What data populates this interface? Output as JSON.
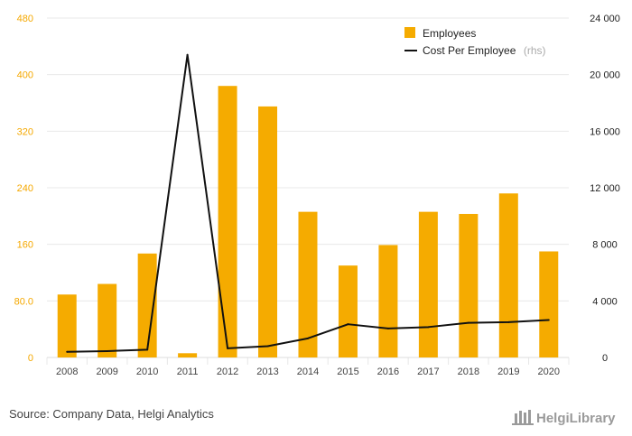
{
  "chart_data": {
    "type": "bar",
    "categories": [
      "2008",
      "2009",
      "2010",
      "2011",
      "2012",
      "2013",
      "2014",
      "2015",
      "2016",
      "2017",
      "2018",
      "2019",
      "2020"
    ],
    "series": [
      {
        "name": "Employees",
        "type": "bar",
        "axis": "left",
        "color": "#f5ab00",
        "values": [
          89,
          104,
          147,
          6,
          384,
          355,
          206,
          130,
          159,
          206,
          203,
          232,
          150
        ]
      },
      {
        "name": "Cost Per Employee",
        "legend_suffix": "(rhs)",
        "type": "line",
        "axis": "right",
        "color": "#111111",
        "values": [
          400,
          450,
          550,
          21400,
          650,
          800,
          1350,
          2350,
          2050,
          2150,
          2450,
          2500,
          2650
        ]
      }
    ],
    "y_left": {
      "ylim": [
        0,
        480
      ],
      "ticks": [
        0,
        80,
        160,
        240,
        320,
        400,
        480
      ],
      "tick_labels": [
        "0",
        "80.0",
        "160",
        "240",
        "320",
        "400",
        "480"
      ]
    },
    "y_right": {
      "ylim": [
        0,
        24000
      ],
      "ticks": [
        0,
        4000,
        8000,
        12000,
        16000,
        20000,
        24000
      ],
      "tick_labels": [
        "0",
        "4 000",
        "8 000",
        "12 000",
        "16 000",
        "20 000",
        "24 000"
      ]
    },
    "grid": true,
    "legend_position": "top-right",
    "title": "",
    "xlabel": "",
    "ylabel": ""
  },
  "footer": {
    "source": "Source: Company Data, Helgi Analytics",
    "brand": "HelgiLibrary"
  }
}
